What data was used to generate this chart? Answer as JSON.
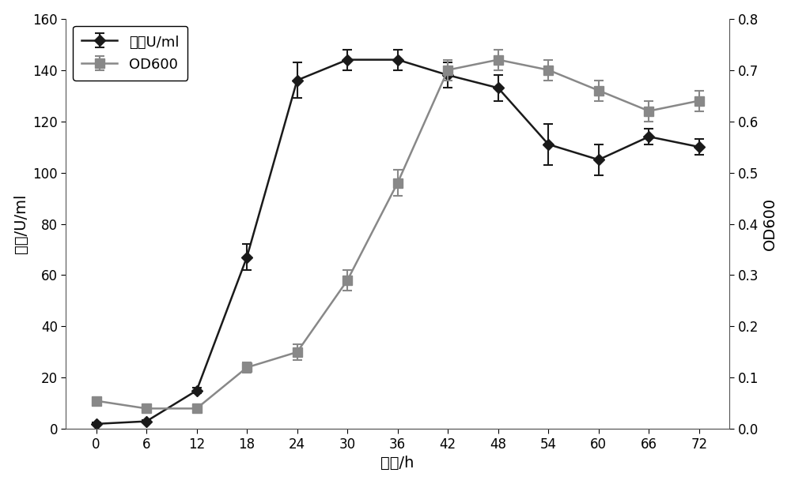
{
  "x": [
    0,
    6,
    12,
    18,
    24,
    30,
    36,
    42,
    48,
    54,
    60,
    66,
    72
  ],
  "enzyme_activity": [
    2,
    3,
    15,
    67,
    136,
    144,
    144,
    138,
    133,
    111,
    105,
    114,
    110
  ],
  "enzyme_activity_err": [
    0.5,
    0.5,
    1,
    5,
    7,
    4,
    4,
    5,
    5,
    8,
    6,
    3,
    3
  ],
  "od600": [
    0.055,
    0.04,
    0.04,
    0.12,
    0.15,
    0.29,
    0.48,
    0.7,
    0.72,
    0.7,
    0.66,
    0.62,
    0.64
  ],
  "od600_err": [
    0.005,
    0.005,
    0.005,
    0.01,
    0.015,
    0.02,
    0.025,
    0.02,
    0.02,
    0.02,
    0.02,
    0.02,
    0.02
  ],
  "xlabel": "时间/h",
  "ylabel_left": "酶活/U/ml",
  "ylabel_right": "OD600",
  "legend_enzyme": "酶活U/ml",
  "legend_od": "OD600",
  "line1_color": "#1a1a1a",
  "line2_color": "#888888",
  "marker1_color": "#1a1a1a",
  "marker2_color": "#888888",
  "ylim_left": [
    0,
    160
  ],
  "ylim_right": [
    0,
    0.8
  ],
  "yticks_left": [
    0,
    20,
    40,
    60,
    80,
    100,
    120,
    140,
    160
  ],
  "yticks_right": [
    0,
    0.1,
    0.2,
    0.3,
    0.4,
    0.5,
    0.6,
    0.7,
    0.8
  ],
  "xticks": [
    0,
    6,
    12,
    18,
    24,
    30,
    36,
    42,
    48,
    54,
    60,
    66,
    72
  ],
  "figsize": [
    10.0,
    6.13
  ],
  "dpi": 100,
  "background_color": "#ffffff",
  "title_fontsize": 14,
  "label_fontsize": 14,
  "tick_fontsize": 12,
  "legend_fontsize": 13
}
